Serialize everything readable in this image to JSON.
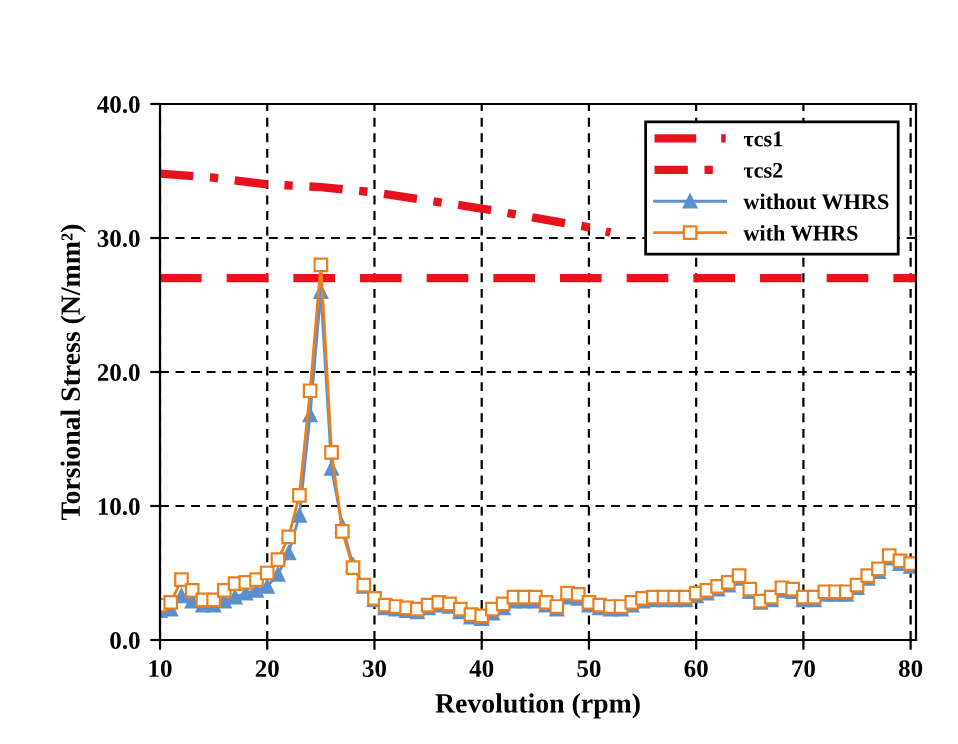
{
  "chart_data": {
    "type": "line",
    "xlabel": "Revolution (rpm)",
    "ylabel": "Torsional Stress (N/mm²)",
    "xlim": [
      10,
      80.5
    ],
    "xticks": [
      10,
      20,
      30,
      40,
      50,
      60,
      70,
      80
    ],
    "ylim": [
      0,
      40
    ],
    "yticks": [
      {
        "value": 0,
        "label": "0.0"
      },
      {
        "value": 10,
        "label": "10.0"
      },
      {
        "value": 20,
        "label": "20.0"
      },
      {
        "value": 30,
        "label": "30.0"
      },
      {
        "value": 40,
        "label": "40.0"
      }
    ],
    "grid": true,
    "legend": "top right",
    "series": [
      {
        "name": "τcs1",
        "color": "#e8121e",
        "line_style": "dashed",
        "marker": "none",
        "x": [
          10,
          80.5
        ],
        "values": [
          27,
          27
        ]
      },
      {
        "name": "τcs2",
        "color": "#e8121e",
        "line_style": "dashdot",
        "marker": "none",
        "x": [
          10,
          15,
          20,
          25,
          30,
          35,
          40,
          45,
          50,
          52
        ],
        "values": [
          34.8,
          34.5,
          34.0,
          33.8,
          33.4,
          32.8,
          32.2,
          31.5,
          30.8,
          30.4
        ]
      },
      {
        "name": "without WHRS",
        "color": "#5b8fd0",
        "line_style": "solid",
        "marker": "triangle",
        "x": [
          10,
          11,
          12,
          13,
          14,
          15,
          16,
          17,
          18,
          19,
          20,
          21,
          22,
          23,
          24,
          25,
          26,
          27,
          28,
          29,
          30,
          31,
          32,
          33,
          34,
          35,
          36,
          37,
          38,
          39,
          40,
          41,
          42,
          43,
          44,
          45,
          46,
          47,
          48,
          49,
          50,
          51,
          52,
          53,
          54,
          55,
          56,
          57,
          58,
          59,
          60,
          61,
          62,
          63,
          64,
          65,
          66,
          67,
          68,
          69,
          70,
          71,
          72,
          73,
          74,
          75,
          76,
          77,
          78,
          79,
          80
        ],
        "values": [
          2.2,
          2.3,
          3.3,
          2.9,
          2.6,
          2.6,
          2.9,
          3.2,
          3.5,
          3.7,
          4.0,
          4.9,
          6.5,
          9.3,
          16.8,
          26.0,
          12.8,
          8.5,
          5.6,
          4.0,
          3.0,
          2.4,
          2.3,
          2.2,
          2.1,
          2.4,
          2.6,
          2.5,
          2.1,
          1.7,
          1.6,
          2.0,
          2.4,
          2.9,
          2.9,
          2.9,
          2.6,
          2.3,
          3.2,
          3.1,
          2.6,
          2.4,
          2.3,
          2.3,
          2.6,
          2.9,
          3.0,
          3.0,
          3.0,
          3.0,
          3.3,
          3.5,
          3.8,
          4.1,
          4.6,
          3.6,
          2.8,
          3.0,
          3.7,
          3.6,
          3.0,
          3.0,
          3.4,
          3.4,
          3.4,
          3.9,
          4.6,
          5.1,
          6.1,
          5.7,
          5.5
        ]
      },
      {
        "name": "with WHRS",
        "color": "#e8801e",
        "line_style": "solid",
        "marker": "square",
        "x": [
          10,
          11,
          12,
          13,
          14,
          15,
          16,
          17,
          18,
          19,
          20,
          21,
          22,
          23,
          24,
          25,
          26,
          27,
          28,
          29,
          30,
          31,
          32,
          33,
          34,
          35,
          36,
          37,
          38,
          39,
          40,
          41,
          42,
          43,
          44,
          45,
          46,
          47,
          48,
          49,
          50,
          51,
          52,
          53,
          54,
          55,
          56,
          57,
          58,
          59,
          60,
          61,
          62,
          63,
          64,
          65,
          66,
          67,
          68,
          69,
          70,
          71,
          72,
          73,
          74,
          75,
          76,
          77,
          78,
          79,
          80
        ],
        "values": [
          2.6,
          2.8,
          4.5,
          3.7,
          3.0,
          3.0,
          3.7,
          4.2,
          4.3,
          4.5,
          5.0,
          6.0,
          7.7,
          10.8,
          18.6,
          28.0,
          14.0,
          8.1,
          5.4,
          4.1,
          3.1,
          2.6,
          2.5,
          2.4,
          2.3,
          2.6,
          2.8,
          2.7,
          2.3,
          1.9,
          1.8,
          2.3,
          2.7,
          3.2,
          3.2,
          3.2,
          2.8,
          2.5,
          3.5,
          3.4,
          2.8,
          2.6,
          2.5,
          2.5,
          2.8,
          3.1,
          3.2,
          3.2,
          3.2,
          3.2,
          3.5,
          3.7,
          4.0,
          4.3,
          4.8,
          3.8,
          2.9,
          3.2,
          3.9,
          3.8,
          3.2,
          3.2,
          3.6,
          3.6,
          3.6,
          4.1,
          4.8,
          5.3,
          6.3,
          5.9,
          5.7
        ]
      }
    ]
  }
}
